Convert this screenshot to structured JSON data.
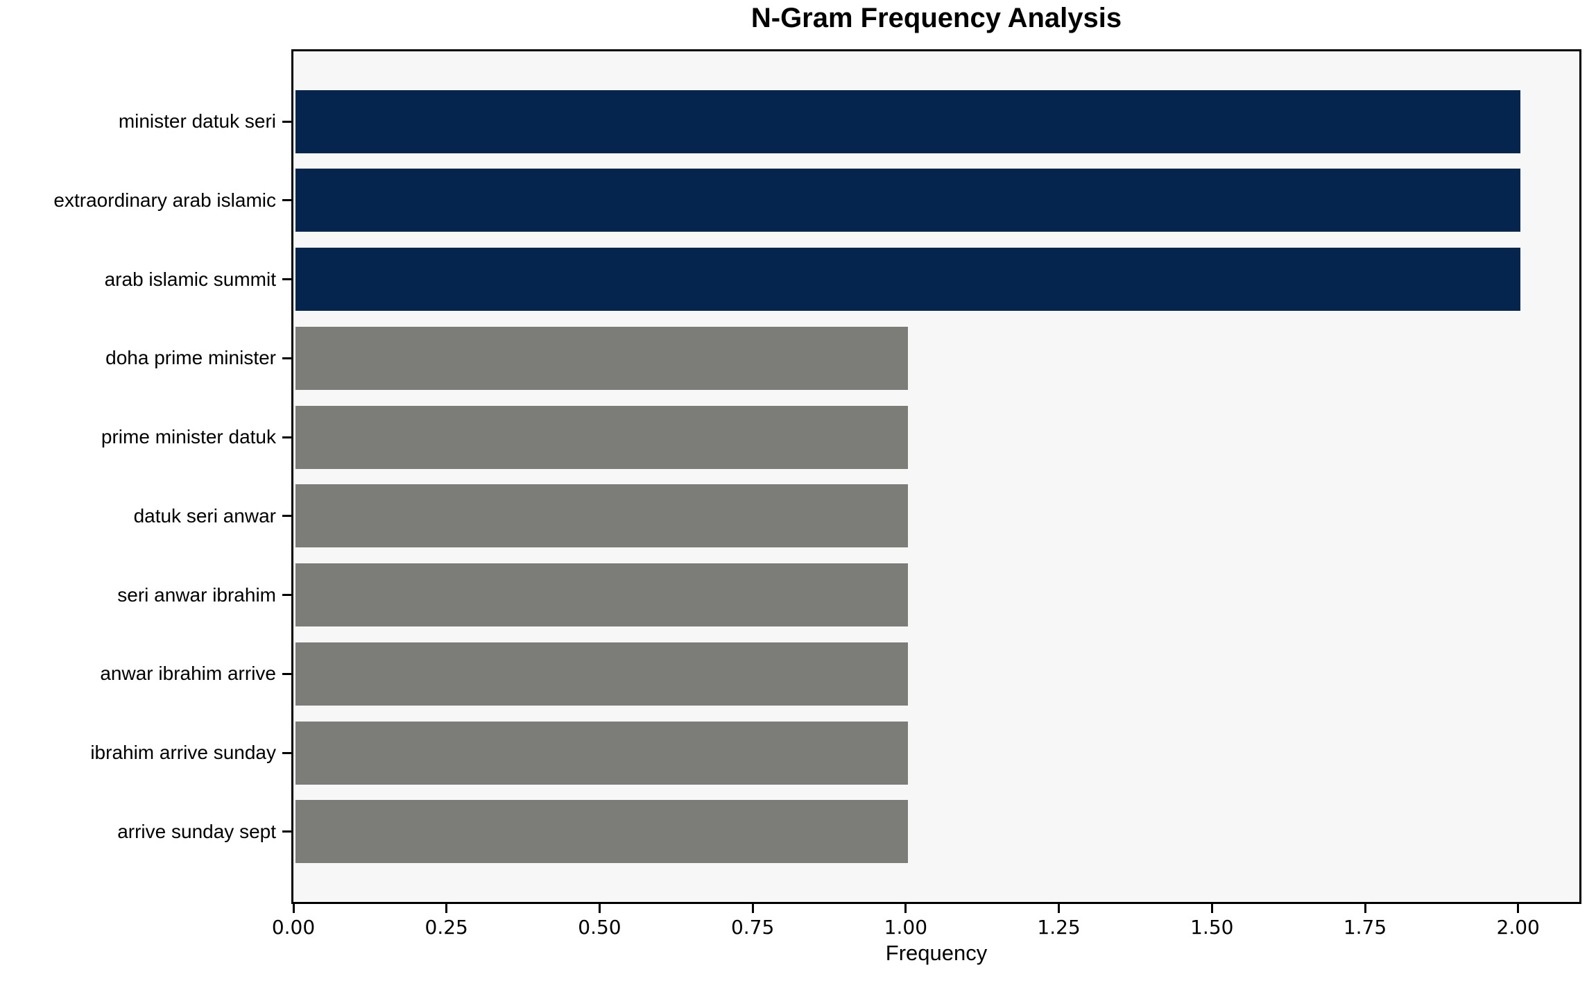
{
  "chart_data": {
    "type": "bar",
    "orientation": "horizontal",
    "title": "N-Gram Frequency Analysis",
    "xlabel": "Frequency",
    "ylabel": "",
    "categories": [
      "minister datuk seri",
      "extraordinary arab islamic",
      "arab islamic summit",
      "doha prime minister",
      "prime minister datuk",
      "datuk seri anwar",
      "seri anwar ibrahim",
      "anwar ibrahim arrive",
      "ibrahim arrive sunday",
      "arrive sunday sept"
    ],
    "values": [
      2,
      2,
      2,
      1,
      1,
      1,
      1,
      1,
      1,
      1
    ],
    "bar_colors": [
      "#05254e",
      "#05254e",
      "#05254e",
      "#7c7c79",
      "#7c7c79",
      "#7c7c79",
      "#7c7c79",
      "#7c7c79",
      "#7c7c79",
      "#7c7c79"
    ],
    "xlim": [
      0,
      2.1
    ],
    "xticks": [
      0,
      0.25,
      0.5,
      0.75,
      1.0,
      1.25,
      1.5,
      1.75,
      2.0
    ],
    "xtick_labels": [
      "0.00",
      "0.25",
      "0.50",
      "0.75",
      "1.00",
      "1.25",
      "1.50",
      "1.75",
      "2.00"
    ],
    "grid": false,
    "legend": null,
    "colors": {
      "highlight": "#05254e",
      "default": "#7c7c79",
      "plot_background": "#f7f7f7",
      "figure_background": "#ffffff",
      "spine": "#000000",
      "text": "#000000"
    }
  }
}
